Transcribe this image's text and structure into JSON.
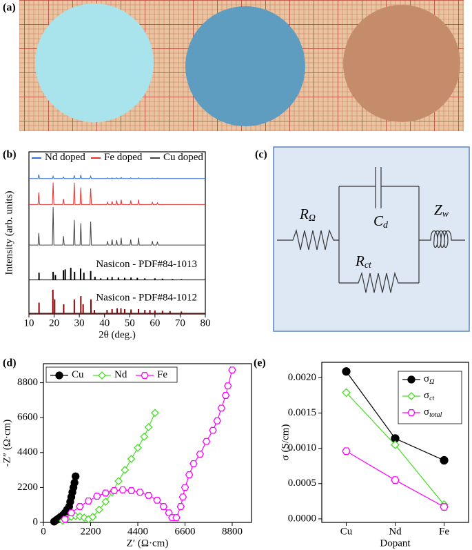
{
  "panel_labels": [
    "(a)",
    "(b)",
    "(c)",
    "(d)",
    "(e)"
  ],
  "circuit": {
    "elements": [
      {
        "symbol": "R",
        "sub": "Ω"
      },
      {
        "symbol": "C",
        "sub": "d"
      },
      {
        "symbol": "R",
        "sub": "ct"
      },
      {
        "symbol": "Z",
        "sub": "w"
      }
    ]
  },
  "chart_data": [
    {
      "type": "line",
      "xlabel": "2θ (deg.)",
      "ylabel": "Intensity (arb. units)",
      "xlim": [
        10,
        80
      ],
      "xticks": [
        10,
        20,
        30,
        40,
        50,
        60,
        70,
        80
      ],
      "ylim": [
        0,
        100
      ],
      "legend": "top",
      "x": [
        10,
        13.6,
        13.9,
        14.2,
        19.3,
        19.6,
        19.9,
        23.4,
        23.7,
        24.0,
        27.7,
        28.0,
        28.3,
        30.3,
        30.6,
        30.9,
        34.2,
        34.5,
        34.8,
        40.9,
        41.2,
        41.5,
        42.7,
        43.0,
        43.3,
        44.5,
        44.8,
        45.1,
        46.3,
        46.6,
        46.9,
        50.1,
        50.4,
        50.7,
        53.2,
        53.5,
        53.8,
        58.7,
        59.0,
        59.3,
        60.7,
        61.0,
        61.3,
        80
      ],
      "series": [
        {
          "name": "Nd doped",
          "color": "#2a6fd6",
          "values": [
            83.5,
            83.5,
            86,
            83.5,
            83.5,
            85,
            83.5,
            83.5,
            84.5,
            83.5,
            83.5,
            85.5,
            83.5,
            83.5,
            85.8,
            83.5,
            83.5,
            85,
            83.5,
            83.5,
            84,
            83.5,
            83.5,
            84,
            83.5,
            83.5,
            84,
            83.5,
            83.5,
            84.2,
            83.5,
            83.5,
            84,
            83.5,
            83.5,
            84,
            83.5,
            83.5,
            83.8,
            83.5,
            83.5,
            83.8,
            83.5,
            83.5
          ]
        },
        {
          "name": "Fe doped",
          "color": "#e53030",
          "values": [
            67.5,
            67.5,
            75,
            67.5,
            67.5,
            81,
            67.5,
            67.5,
            71,
            67.5,
            67.5,
            81,
            67.5,
            67.5,
            78,
            67.5,
            67.5,
            77.5,
            67.5,
            67.5,
            69,
            67.5,
            67.5,
            69.5,
            67.5,
            67.5,
            70,
            67.5,
            67.5,
            70.5,
            67.5,
            67.5,
            70,
            67.5,
            67.5,
            70.5,
            67.5,
            67.5,
            68.8,
            67.5,
            67.5,
            68.5,
            67.5,
            67.5
          ]
        },
        {
          "name": "Cu doped",
          "color": "#444444",
          "values": [
            42.5,
            42.5,
            50,
            42.5,
            42.5,
            66,
            42.5,
            42.5,
            48,
            42.5,
            42.5,
            58,
            42.5,
            42.5,
            56,
            42.5,
            42.5,
            57,
            42.5,
            42.5,
            45,
            42.5,
            42.5,
            46,
            42.5,
            42.5,
            45.5,
            42.5,
            42.5,
            47,
            42.5,
            42.5,
            46,
            42.5,
            42.5,
            47,
            42.5,
            42.5,
            45,
            42.5,
            42.5,
            44.5,
            42.5,
            42.5
          ]
        }
      ],
      "references": [
        {
          "label": "Nasicon - PDF#84-1013",
          "color": "#000000",
          "base": 21,
          "x": [
            14,
            19.6,
            20.5,
            23.7,
            24.4,
            26.6,
            28.1,
            30.5,
            31.8,
            34.5,
            36.2,
            38.5,
            41.2,
            43,
            45.5,
            48,
            50.5,
            53,
            56,
            60,
            63,
            67,
            70.5
          ],
          "values": [
            25.5,
            26,
            24,
            27,
            27.5,
            28.5,
            26,
            28,
            25.5,
            26.5,
            23,
            22,
            22.5,
            22.8,
            22.5,
            22.3,
            22.5,
            22.3,
            22,
            22,
            21.8,
            21.6,
            21.5
          ]
        },
        {
          "label": "Nasicon - PDF#84-1012",
          "color": "#8b0000",
          "base": 0.5,
          "x": [
            14,
            19.5,
            20.2,
            23.8,
            28,
            30.6,
            31.5,
            34.6,
            36,
            41,
            43,
            45,
            46.5,
            48,
            50.5,
            53.5,
            56,
            58,
            60,
            63,
            66,
            70.5
          ],
          "values": [
            7,
            15,
            9,
            6,
            9,
            11,
            6,
            9,
            2.5,
            2.5,
            3,
            3.5,
            3.5,
            3,
            2.8,
            3,
            2.5,
            2.5,
            2.2,
            2,
            1.8,
            1.5
          ]
        }
      ]
    },
    {
      "type": "line",
      "xlabel": "Z′ (Ω·cm)",
      "ylabel": "-Z″ (Ω·cm)",
      "xlim": [
        0,
        9700
      ],
      "xticks": [
        0,
        2200,
        4400,
        6600,
        8800
      ],
      "ylim": [
        0,
        10000
      ],
      "yticks": [
        0,
        2200,
        4400,
        6600,
        8800
      ],
      "legend": "upper left",
      "series": [
        {
          "name": "Cu",
          "color": "#000000",
          "marker": "circle",
          "filled": true,
          "x": [
            500,
            600,
            700,
            800,
            900,
            1000,
            1100,
            1200,
            1250,
            1300,
            1350,
            1400,
            1450,
            1500
          ],
          "values": [
            50,
            150,
            250,
            350,
            450,
            600,
            800,
            1000,
            1300,
            1600,
            1900,
            2200,
            2500,
            2900
          ]
        },
        {
          "name": "Nd",
          "color": "#44dd22",
          "marker": "diamond",
          "filled": false,
          "x": [
            900,
            1100,
            1300,
            1500,
            1700,
            1900,
            2100,
            2300,
            2600,
            2900,
            3200,
            3500,
            3800,
            4100,
            4400,
            4700,
            4900,
            5200
          ],
          "values": [
            100,
            250,
            350,
            400,
            380,
            300,
            200,
            350,
            800,
            1300,
            1900,
            2600,
            3300,
            4000,
            4700,
            5400,
            6000,
            6900
          ]
        },
        {
          "name": "Fe",
          "color": "#ff00ff",
          "marker": "hexagon",
          "filled": false,
          "x": [
            1000,
            1300,
            1700,
            2100,
            2500,
            2900,
            3300,
            3700,
            4100,
            4500,
            4900,
            5300,
            5600,
            5850,
            6000,
            6200,
            6400,
            6500,
            6600,
            6800,
            7000,
            7300,
            7600,
            7900,
            8100,
            8300,
            8500,
            8600,
            8800
          ],
          "values": [
            200,
            600,
            1000,
            1350,
            1650,
            1850,
            2000,
            2050,
            2000,
            1900,
            1700,
            1400,
            1000,
            600,
            300,
            300,
            1000,
            1600,
            2200,
            3000,
            3700,
            4300,
            5100,
            5800,
            6400,
            7200,
            8000,
            8600,
            9600
          ]
        }
      ]
    },
    {
      "type": "line",
      "xlabel": "Dopant",
      "ylabel": "σ (S/cm)",
      "categories": [
        "Cu",
        "Nd",
        "Fe"
      ],
      "ylim": [
        -5e-05,
        0.00222
      ],
      "yticks": [
        {
          "value": 0,
          "label": "0.0000"
        },
        {
          "value": 0.0005,
          "label": "0.0005"
        },
        {
          "value": 0.001,
          "label": "0.0010"
        },
        {
          "value": 0.0015,
          "label": "0.0015"
        },
        {
          "value": 0.002,
          "label": "0.0020"
        }
      ],
      "legend": "upper right",
      "series": [
        {
          "name": "σ",
          "name_sub": "Ω",
          "color": "#000000",
          "marker": "circle",
          "filled": true,
          "values": [
            0.00209,
            0.00114,
            0.00083
          ]
        },
        {
          "name": "σ",
          "name_sub": "ct",
          "color": "#44dd22",
          "marker": "diamond",
          "filled": false,
          "values": [
            0.00179,
            0.00105,
            0.0002
          ]
        },
        {
          "name": "σ",
          "name_sub": "total",
          "color": "#ff00ff",
          "marker": "hexagon",
          "filled": false,
          "values": [
            0.00096,
            0.00055,
            0.00017
          ]
        }
      ]
    }
  ]
}
